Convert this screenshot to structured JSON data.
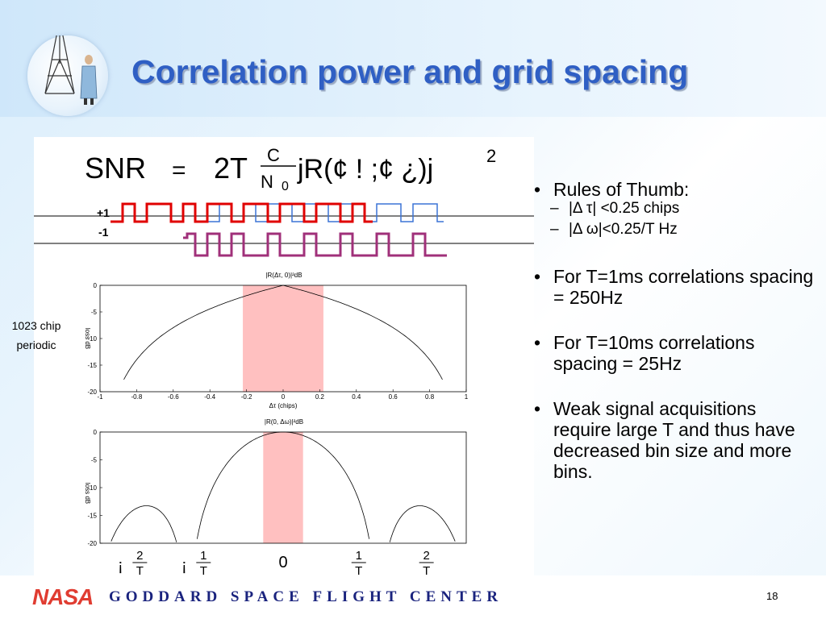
{
  "slide": {
    "title": "Correlation power and grid spacing",
    "page_number": "18"
  },
  "formula": {
    "lhs": "SNR",
    "eq": "=",
    "two_t": "2T",
    "frac_num": "C",
    "frac_den": "N",
    "frac_den_sub": "0",
    "body": "jR(¢ ! ;¢ ¿)j",
    "exp": "2"
  },
  "signal": {
    "plus_label": "+1",
    "minus_label": "-1"
  },
  "side_label": {
    "line1": "1023 chip",
    "line2": "periodic"
  },
  "chart_data": [
    {
      "type": "line",
      "title": "|R(Δτ, 0)|²dB",
      "xlabel": "Δτ (chips)",
      "ylabel": "loss dB",
      "xlim": [
        -1,
        1
      ],
      "ylim": [
        -20,
        0
      ],
      "xticks": [
        "-1",
        "-0.8",
        "-0.6",
        "-0.4",
        "-0.2",
        "0",
        "0.2",
        "0.4",
        "0.6",
        "0.8",
        "1"
      ],
      "yticks": [
        "0",
        "-5",
        "-10",
        "-15",
        "-20"
      ],
      "shaded_region": [
        -0.22,
        0.22
      ],
      "series": [
        {
          "x": [
            -0.87,
            -0.8,
            -0.6,
            -0.4,
            -0.2,
            0,
            0.2,
            0.4,
            0.6,
            0.8,
            0.87
          ],
          "y": [
            -20,
            -13.98,
            -7.96,
            -4.44,
            -1.94,
            0,
            -1.94,
            -4.44,
            -7.96,
            -13.98,
            -20
          ]
        }
      ]
    },
    {
      "type": "line",
      "title": "|R(0, Δω)|²dB",
      "xlabel": "",
      "ylabel": "loss dB",
      "ylim": [
        -20,
        0
      ],
      "yticks": [
        "0",
        "-5",
        "-10",
        "-15",
        "-20"
      ],
      "xtick_labels": [
        {
          "prefix": "¡",
          "num": "2",
          "den": "T"
        },
        {
          "prefix": "¡",
          "num": "1",
          "den": "T"
        },
        {
          "prefix": "",
          "num": "",
          "den": "",
          "plain": "0"
        },
        {
          "prefix": "",
          "num": "1",
          "den": "T"
        },
        {
          "prefix": "",
          "num": "2",
          "den": "T"
        }
      ],
      "shaded_region": [
        -0.25,
        0.25
      ],
      "series": [
        {
          "x": [
            -1.8,
            -1.5,
            -1.2,
            -1.0,
            -0.6,
            -0.3,
            0,
            0.3,
            0.6,
            1.0,
            1.2,
            1.5,
            1.8
          ],
          "y": [
            -20,
            -13.5,
            -20,
            -20,
            -8,
            -1.3,
            0,
            -1.3,
            -8,
            -20,
            -20,
            -13.5,
            -20
          ]
        }
      ]
    }
  ],
  "bullets": [
    {
      "text": "Rules of Thumb:",
      "subs": [
        "|Δ τ| <0.25 chips",
        "|Δ ω|<0.25/T Hz"
      ]
    },
    {
      "text": "For T=1ms correlations spacing = 250Hz",
      "subs": []
    },
    {
      "text": "For T=10ms correlations spacing = 25Hz",
      "subs": []
    },
    {
      "text": "Weak signal acquisitions require large T and thus have decreased bin size and more bins.",
      "subs": []
    }
  ],
  "footer": {
    "logo_text": "NASA",
    "center": "GODDARD SPACE FLIGHT CENTER"
  },
  "colors": {
    "title": "#2f5fc4",
    "shade": "#ffc0c0",
    "signal_red": "#e00000",
    "signal_blue": "#3b73d6",
    "signal_purple": "#a0307a",
    "nasa_red": "#e03c31",
    "goddard": "#1a237e"
  }
}
